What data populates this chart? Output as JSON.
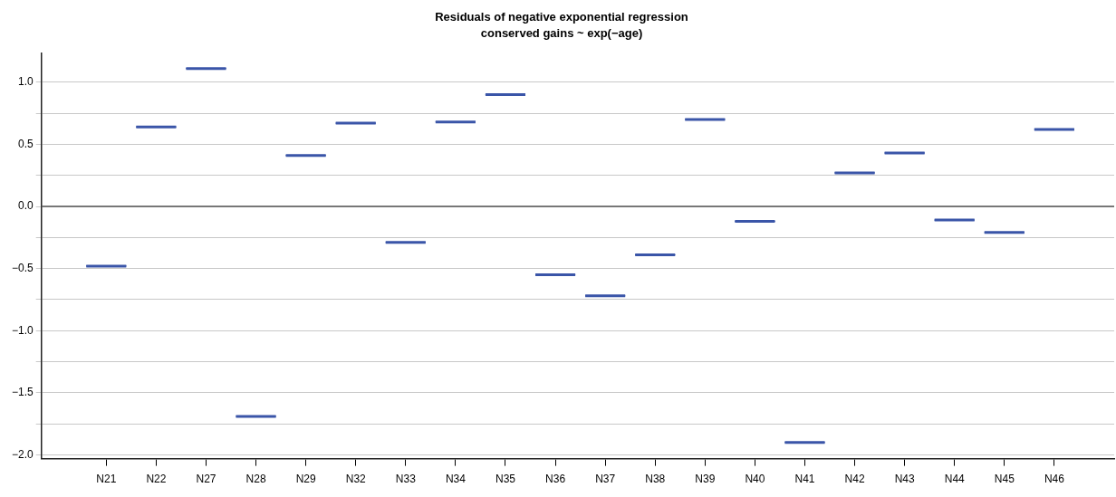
{
  "chart_data": {
    "type": "box",
    "title": "Residuals of negative exponential regression",
    "subtitle": "conserved gains ~ exp(−age)",
    "categories": [
      "N21",
      "N22",
      "N27",
      "N28",
      "N29",
      "N32",
      "N33",
      "N34",
      "N35",
      "N36",
      "N37",
      "N38",
      "N39",
      "N40",
      "N41",
      "N42",
      "N43",
      "N44",
      "N45",
      "N46"
    ],
    "boxes": [
      {
        "low": -0.48,
        "q1": -0.48,
        "median": -0.48,
        "q3": -0.48,
        "high": -0.48
      },
      {
        "low": 0.64,
        "q1": 0.64,
        "median": 0.64,
        "q3": 0.64,
        "high": 0.64
      },
      {
        "low": 1.11,
        "q1": 1.11,
        "median": 1.11,
        "q3": 1.11,
        "high": 1.11
      },
      {
        "low": -1.69,
        "q1": -1.69,
        "median": -1.69,
        "q3": -1.69,
        "high": -1.69
      },
      {
        "low": 0.41,
        "q1": 0.41,
        "median": 0.41,
        "q3": 0.41,
        "high": 0.41
      },
      {
        "low": 0.67,
        "q1": 0.67,
        "median": 0.67,
        "q3": 0.67,
        "high": 0.67
      },
      {
        "low": -0.29,
        "q1": -0.29,
        "median": -0.29,
        "q3": -0.29,
        "high": -0.29
      },
      {
        "low": 0.68,
        "q1": 0.68,
        "median": 0.68,
        "q3": 0.68,
        "high": 0.68
      },
      {
        "low": 0.9,
        "q1": 0.9,
        "median": 0.9,
        "q3": 0.9,
        "high": 0.9
      },
      {
        "low": -0.55,
        "q1": -0.55,
        "median": -0.55,
        "q3": -0.55,
        "high": -0.55
      },
      {
        "low": -0.72,
        "q1": -0.72,
        "median": -0.72,
        "q3": -0.72,
        "high": -0.72
      },
      {
        "low": -0.39,
        "q1": -0.39,
        "median": -0.39,
        "q3": -0.39,
        "high": -0.39
      },
      {
        "low": 0.7,
        "q1": 0.7,
        "median": 0.7,
        "q3": 0.7,
        "high": 0.7
      },
      {
        "low": -0.12,
        "q1": -0.12,
        "median": -0.12,
        "q3": -0.12,
        "high": -0.12
      },
      {
        "low": -1.9,
        "q1": -1.9,
        "median": -1.9,
        "q3": -1.9,
        "high": -1.9
      },
      {
        "low": 0.27,
        "q1": 0.27,
        "median": 0.27,
        "q3": 0.27,
        "high": 0.27
      },
      {
        "low": 0.43,
        "q1": 0.43,
        "median": 0.43,
        "q3": 0.43,
        "high": 0.43
      },
      {
        "low": -0.11,
        "q1": -0.11,
        "median": -0.11,
        "q3": -0.11,
        "high": -0.11
      },
      {
        "low": -0.21,
        "q1": -0.21,
        "median": -0.21,
        "q3": -0.21,
        "high": -0.21
      },
      {
        "low": 0.62,
        "q1": 0.62,
        "median": 0.62,
        "q3": 0.62,
        "high": 0.62
      }
    ],
    "color": "#3a55a8",
    "ylim": [
      -2.03,
      1.23
    ],
    "yticks": [
      {
        "value": -2.0,
        "label": "−2.0"
      },
      {
        "value": -1.75,
        "label": null
      },
      {
        "value": -1.5,
        "label": "−1.5"
      },
      {
        "value": -1.25,
        "label": null
      },
      {
        "value": -1.0,
        "label": "−1.0"
      },
      {
        "value": -0.75,
        "label": null
      },
      {
        "value": -0.5,
        "label": "−0.5"
      },
      {
        "value": -0.25,
        "label": null
      },
      {
        "value": 0.0,
        "label": "0.0"
      },
      {
        "value": 0.25,
        "label": null
      },
      {
        "value": 0.5,
        "label": "0.5"
      },
      {
        "value": 0.75,
        "label": null
      },
      {
        "value": 1.0,
        "label": "1.0"
      }
    ],
    "grid": "y",
    "ref_lines": [
      {
        "axis": "y",
        "value": 0,
        "color": "#555555"
      }
    ]
  }
}
